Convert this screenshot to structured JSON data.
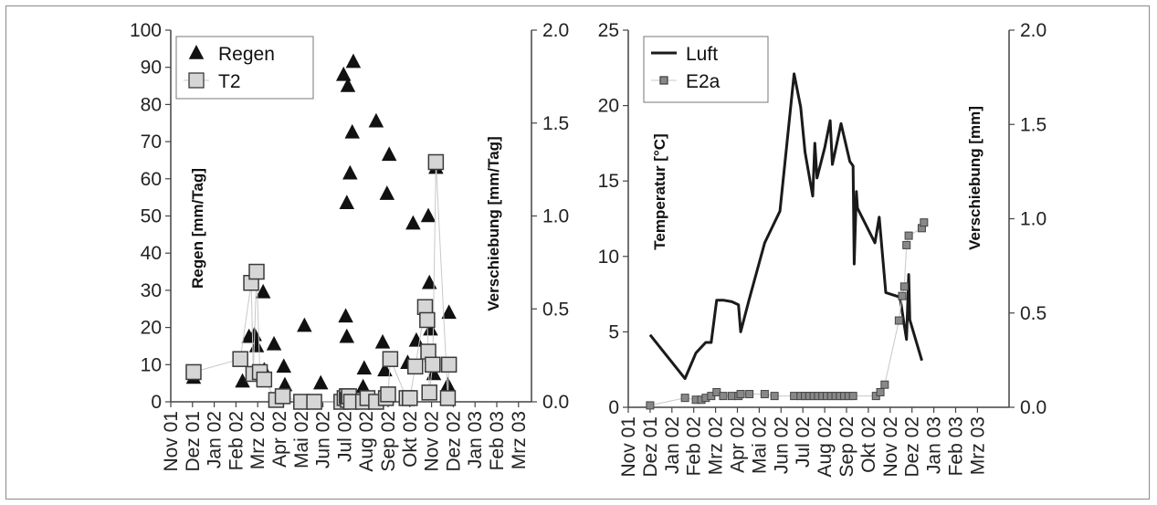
{
  "chart_data": [
    {
      "type": "scatter",
      "months": [
        "Nov 01",
        "Dez 01",
        "Jan 02",
        "Feb 02",
        "Mrz 02",
        "Apr 02",
        "Mai 02",
        "Jun 02",
        "Jul 02",
        "Aug 02",
        "Sep 02",
        "Okt 02",
        "Nov 02",
        "Dez 02",
        "Jan 03",
        "Feb 03",
        "Mrz 03"
      ],
      "y_left": {
        "label": "Regen [mm/Tag]",
        "range": [
          0,
          100
        ],
        "ticks": [
          "0",
          "10",
          "20",
          "30",
          "40",
          "50",
          "60",
          "70",
          "80",
          "90",
          "100"
        ]
      },
      "y_right": {
        "label": "Verschiebung [mm/Tag]",
        "range": [
          0,
          2.0
        ],
        "ticks": [
          "0.0",
          "0.5",
          "1.0",
          "1.5",
          "2.0"
        ]
      },
      "series": [
        {
          "name": "Regen",
          "marker": "triangle",
          "axis": "left",
          "points": [
            [
              1.05,
              6.5
            ],
            [
              3.3,
              5.5
            ],
            [
              3.6,
              17.5
            ],
            [
              3.85,
              18
            ],
            [
              3.95,
              15
            ],
            [
              4.25,
              29.5
            ],
            [
              4.3,
              8.5
            ],
            [
              4.75,
              15.5
            ],
            [
              5.2,
              9.5
            ],
            [
              5.25,
              4.5
            ],
            [
              6.15,
              20.5
            ],
            [
              6.9,
              5
            ],
            [
              7.95,
              88
            ],
            [
              8.15,
              85
            ],
            [
              8.25,
              61.5
            ],
            [
              8.4,
              91.5
            ],
            [
              8.35,
              72.5
            ],
            [
              8.05,
              23
            ],
            [
              8.1,
              17.5
            ],
            [
              8.1,
              53.5
            ],
            [
              8.9,
              9
            ],
            [
              8.85,
              4
            ],
            [
              9.45,
              75.5
            ],
            [
              9.75,
              16
            ],
            [
              9.85,
              8.5
            ],
            [
              9.95,
              56
            ],
            [
              10.05,
              66.5
            ],
            [
              10.9,
              10.5
            ],
            [
              11.15,
              48
            ],
            [
              11.3,
              16.5
            ],
            [
              11.85,
              50
            ],
            [
              11.9,
              32
            ],
            [
              11.95,
              19.5
            ],
            [
              12.0,
              12.5
            ],
            [
              12.1,
              7.5
            ],
            [
              12.2,
              63
            ],
            [
              12.8,
              24
            ],
            [
              12.75,
              4.5
            ]
          ]
        },
        {
          "name": "T2",
          "marker": "square",
          "axis": "right",
          "points": [
            [
              1.05,
              0.16
            ],
            [
              3.2,
              0.23
            ],
            [
              3.7,
              0.64
            ],
            [
              3.8,
              0.15
            ],
            [
              3.95,
              0.7
            ],
            [
              4.1,
              0.16
            ],
            [
              4.3,
              0.12
            ],
            [
              4.85,
              0.01
            ],
            [
              5.15,
              0.03
            ],
            [
              6.0,
              0.0
            ],
            [
              6.6,
              0.0
            ],
            [
              7.85,
              0.0
            ],
            [
              8.0,
              0.02
            ],
            [
              8.1,
              0.03
            ],
            [
              8.15,
              0.01
            ],
            [
              8.2,
              0.03
            ],
            [
              8.3,
              0.0
            ],
            [
              8.85,
              0.0
            ],
            [
              9.05,
              0.02
            ],
            [
              9.45,
              0.0
            ],
            [
              9.9,
              0.02
            ],
            [
              10.0,
              0.04
            ],
            [
              10.1,
              0.23
            ],
            [
              10.85,
              0.02
            ],
            [
              11.0,
              0.02
            ],
            [
              11.25,
              0.19
            ],
            [
              11.7,
              0.51
            ],
            [
              11.8,
              0.44
            ],
            [
              11.85,
              0.27
            ],
            [
              11.9,
              0.05
            ],
            [
              12.05,
              0.2
            ],
            [
              12.2,
              1.29
            ],
            [
              12.75,
              0.02
            ],
            [
              12.8,
              0.2
            ]
          ]
        }
      ],
      "legend": "top-left"
    },
    {
      "type": "line",
      "months": [
        "Nov 01",
        "Dez 01",
        "Jan 02",
        "Feb 02",
        "Mrz 02",
        "Apr 02",
        "Mai 02",
        "Jun 02",
        "Jul 02",
        "Aug 02",
        "Sep 02",
        "Okt 02",
        "Nov 02",
        "Dez 02",
        "Jan 03",
        "Feb 03",
        "Mrz 03"
      ],
      "y_left": {
        "label": "Temperatur [°C]",
        "range": [
          0,
          25
        ],
        "ticks": [
          "0",
          "5",
          "10",
          "15",
          "20",
          "25"
        ]
      },
      "y_right": {
        "label": "Verschiebung [mm]",
        "range": [
          0,
          2.0
        ],
        "ticks": [
          "0.0",
          "0.5",
          "1.0",
          "1.5",
          "2.0"
        ]
      },
      "series": [
        {
          "name": "Luft",
          "marker": "line",
          "axis": "left",
          "points": [
            [
              1.0,
              4.8
            ],
            [
              2.6,
              1.9
            ],
            [
              3.1,
              3.6
            ],
            [
              3.55,
              4.3
            ],
            [
              3.8,
              4.3
            ],
            [
              4.05,
              7.1
            ],
            [
              4.35,
              7.1
            ],
            [
              4.75,
              7.0
            ],
            [
              5.05,
              6.8
            ],
            [
              5.15,
              5.0
            ],
            [
              5.55,
              7.2
            ],
            [
              6.25,
              10.9
            ],
            [
              6.95,
              13.0
            ],
            [
              7.6,
              22.1
            ],
            [
              7.9,
              19.9
            ],
            [
              8.1,
              16.9
            ],
            [
              8.45,
              14.0
            ],
            [
              8.55,
              17.5
            ],
            [
              8.65,
              15.2
            ],
            [
              9.0,
              17.2
            ],
            [
              9.25,
              19.0
            ],
            [
              9.35,
              16.1
            ],
            [
              9.75,
              18.8
            ],
            [
              10.15,
              16.3
            ],
            [
              10.3,
              16.0
            ],
            [
              10.35,
              9.5
            ],
            [
              10.45,
              14.3
            ],
            [
              10.5,
              13.2
            ],
            [
              11.3,
              10.9
            ],
            [
              11.5,
              12.6
            ],
            [
              11.8,
              7.6
            ],
            [
              12.45,
              7.3
            ],
            [
              12.6,
              5.9
            ],
            [
              12.75,
              4.5
            ],
            [
              12.85,
              8.8
            ],
            [
              12.9,
              5.8
            ],
            [
              13.45,
              3.1
            ]
          ]
        },
        {
          "name": "E2a",
          "marker": "square",
          "axis": "right",
          "points": [
            [
              1.0,
              0.01
            ],
            [
              2.6,
              0.05
            ],
            [
              3.1,
              0.04
            ],
            [
              3.35,
              0.04
            ],
            [
              3.55,
              0.05
            ],
            [
              3.8,
              0.06
            ],
            [
              4.05,
              0.08
            ],
            [
              4.35,
              0.06
            ],
            [
              4.75,
              0.06
            ],
            [
              5.05,
              0.06
            ],
            [
              5.15,
              0.07
            ],
            [
              5.55,
              0.07
            ],
            [
              6.25,
              0.07
            ],
            [
              6.7,
              0.06
            ],
            [
              7.6,
              0.06
            ],
            [
              7.9,
              0.06
            ],
            [
              8.1,
              0.06
            ],
            [
              8.3,
              0.06
            ],
            [
              8.5,
              0.06
            ],
            [
              8.7,
              0.06
            ],
            [
              8.9,
              0.06
            ],
            [
              9.1,
              0.06
            ],
            [
              9.3,
              0.06
            ],
            [
              9.5,
              0.06
            ],
            [
              9.7,
              0.06
            ],
            [
              9.9,
              0.06
            ],
            [
              10.1,
              0.06
            ],
            [
              10.3,
              0.06
            ],
            [
              11.35,
              0.06
            ],
            [
              11.55,
              0.08
            ],
            [
              11.75,
              0.12
            ],
            [
              12.4,
              0.46
            ],
            [
              12.55,
              0.59
            ],
            [
              12.65,
              0.64
            ],
            [
              12.75,
              0.86
            ],
            [
              12.85,
              0.91
            ],
            [
              13.45,
              0.95
            ],
            [
              13.55,
              0.98
            ]
          ]
        }
      ],
      "legend": "top-left"
    }
  ],
  "colors": {
    "triangle_fill": "#111111",
    "square_fill_left": "#d6d6d6",
    "square_edge_left": "#3a3a3a",
    "square_fill_right": "#888888",
    "square_edge_right": "#444444",
    "line": "#1a1a1a",
    "connector": "#c8c8c8",
    "frame": "#8a8a8a"
  }
}
